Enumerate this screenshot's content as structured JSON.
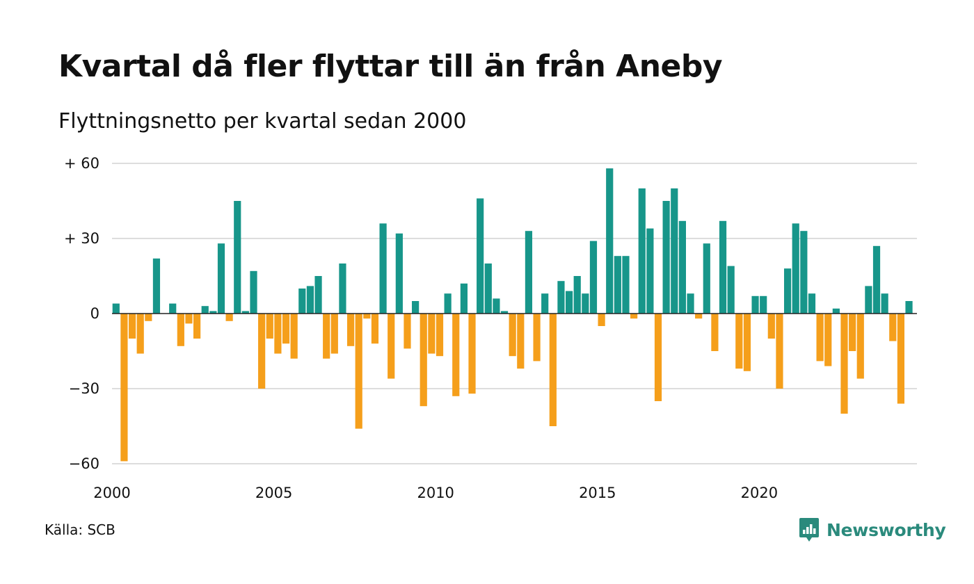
{
  "header": {
    "title": "Kvartal då fler flyttar till än från Aneby",
    "subtitle": "Flyttningsnetto per kvartal sedan 2000"
  },
  "footer": {
    "source": "Källa: SCB",
    "brand": "Newsworthy"
  },
  "colors": {
    "positive": "#17968a",
    "negative": "#f59f1b",
    "grid": "#dddddd",
    "baseline": "#222222",
    "brand": "#2a8a7c"
  },
  "chart_data": {
    "type": "bar",
    "title": "Kvartal då fler flyttar till än från Aneby",
    "subtitle": "Flyttningsnetto per kvartal sedan 2000",
    "start_year": 2000,
    "quarters_per_year": 4,
    "ylim": [
      -60,
      60
    ],
    "y_ticks": [
      {
        "value": 60,
        "label": "+ 60"
      },
      {
        "value": 30,
        "label": "+ 30"
      },
      {
        "value": 0,
        "label": "0"
      },
      {
        "value": -30,
        "label": "−30"
      },
      {
        "value": -60,
        "label": "−60"
      }
    ],
    "x_ticks": [
      {
        "year": 2000,
        "label": "2000"
      },
      {
        "year": 2005,
        "label": "2005"
      },
      {
        "year": 2010,
        "label": "2010"
      },
      {
        "year": 2015,
        "label": "2015"
      },
      {
        "year": 2020,
        "label": "2020"
      }
    ],
    "grid": true,
    "values": [
      4,
      -59,
      -10,
      -16,
      -3,
      22,
      0,
      4,
      -13,
      -4,
      -10,
      3,
      1,
      28,
      -3,
      45,
      1,
      17,
      -30,
      -10,
      -16,
      -12,
      -18,
      10,
      11,
      15,
      -18,
      -16,
      20,
      -13,
      -46,
      -2,
      -12,
      36,
      -26,
      32,
      -14,
      5,
      -37,
      -16,
      -17,
      8,
      -33,
      12,
      -32,
      46,
      20,
      6,
      1,
      -17,
      -22,
      33,
      -19,
      8,
      -45,
      13,
      9,
      15,
      8,
      29,
      -5,
      58,
      23,
      23,
      -2,
      50,
      34,
      -35,
      45,
      50,
      37,
      8,
      -2,
      28,
      -15,
      37,
      19,
      -22,
      -23,
      7,
      7,
      -10,
      -30,
      18,
      36,
      33,
      8,
      -19,
      -21,
      2,
      -40,
      -15,
      -26,
      11,
      27,
      8,
      -11,
      -36,
      5
    ]
  }
}
